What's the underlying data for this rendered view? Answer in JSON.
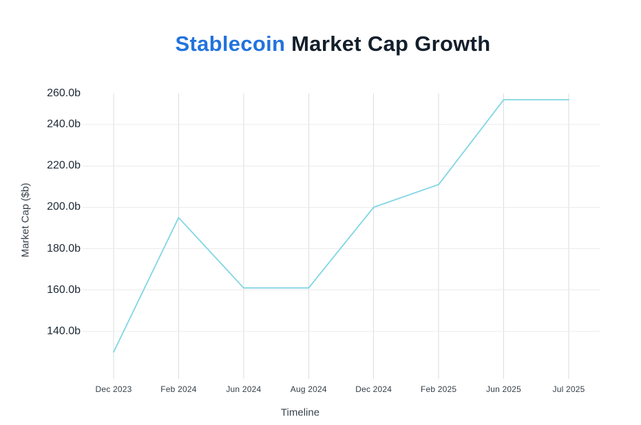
{
  "title": {
    "highlight": "Stablecoin",
    "rest": " Market Cap Growth",
    "highlight_color": "#2273dc",
    "text_color": "#131f2b"
  },
  "chart_data": {
    "type": "line",
    "title": "Stablecoin Market Cap Growth",
    "xlabel": "Timeline",
    "ylabel": "Market Cap ($b)",
    "categories": [
      "Dec 2023",
      "Feb 2024",
      "Jun 2024",
      "Aug 2024",
      "Dec 2024",
      "Feb 2025",
      "Jun 2025",
      "Jul 2025"
    ],
    "values": [
      130,
      195,
      161,
      161,
      200,
      211,
      252,
      252
    ],
    "unit": "b",
    "yticks": {
      "values": [
        260,
        240,
        220,
        200,
        180,
        160,
        140
      ],
      "labels": [
        "260.0b",
        "240.0b",
        "220.0b",
        "200.0b",
        "180.0b",
        "160.0b",
        "140.0b"
      ]
    },
    "ylim": [
      117,
      255
    ],
    "grid": true,
    "legend": false,
    "line_color": "#80d5e4",
    "grid_color_horizontal": "#ebebeb",
    "grid_color_vertical": "#d9dcde",
    "ytick_color": "#1d2935",
    "xtick_color": "#323c46",
    "axis_title_color": "#39424c"
  }
}
